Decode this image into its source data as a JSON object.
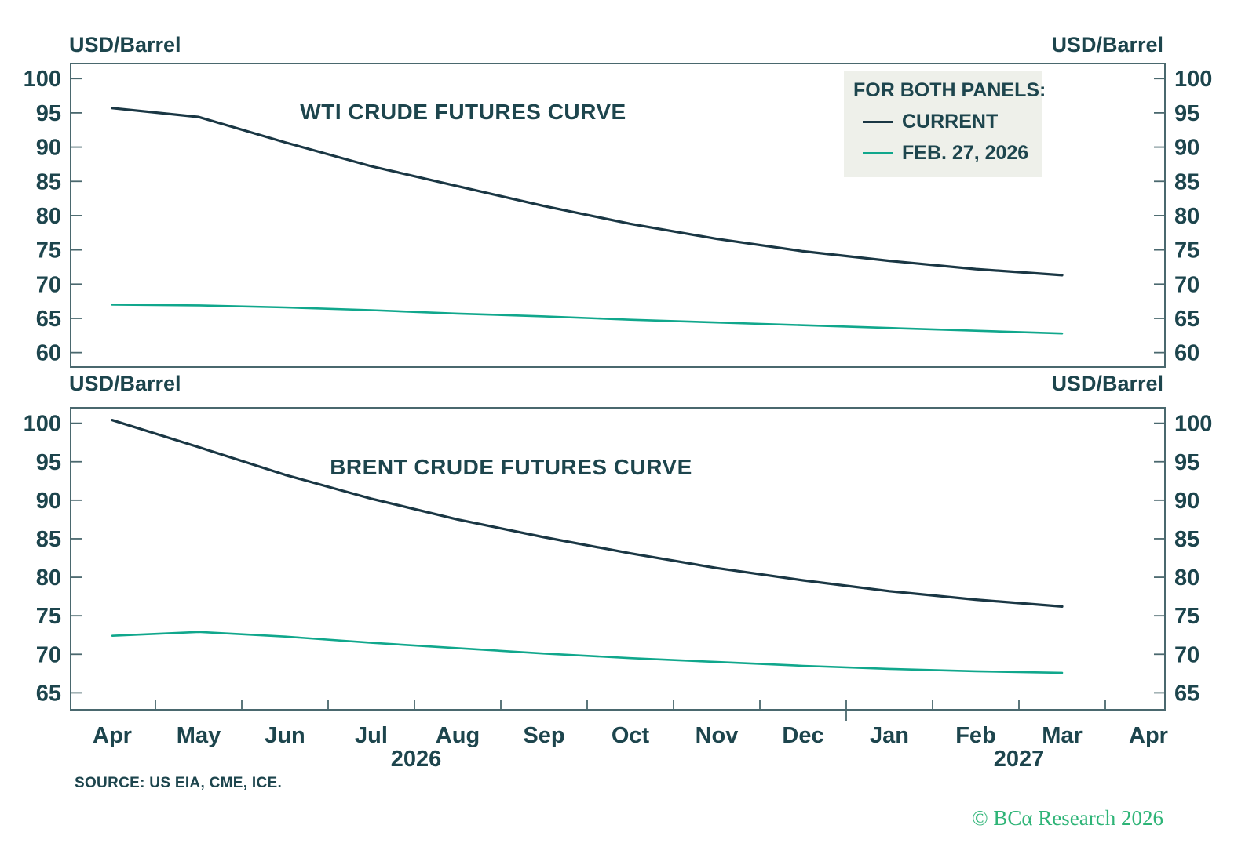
{
  "panels": [
    {
      "title": "WTI CRUDE FUTURES CURVE",
      "unit_left": "USD/Barrel",
      "unit_right": "USD/Barrel"
    },
    {
      "title": "BRENT CRUDE FUTURES CURVE",
      "unit_left": "USD/Barrel",
      "unit_right": "USD/Barrel"
    }
  ],
  "legend": {
    "heading": "FOR BOTH PANELS:",
    "items": [
      {
        "label": "CURRENT",
        "color": "#1a3744"
      },
      {
        "label": "FEB. 27, 2026",
        "color": "#10a78c"
      }
    ]
  },
  "x_axis": {
    "month_labels": [
      "Apr",
      "May",
      "Jun",
      "Jul",
      "Aug",
      "Sep",
      "Oct",
      "Nov",
      "Dec",
      "Jan",
      "Feb",
      "Mar",
      "Apr"
    ],
    "year_labels": [
      "2026",
      "2027"
    ]
  },
  "footer": {
    "source": "SOURCE: US EIA, CME, ICE.",
    "copyright": "© BCα Research 2026"
  },
  "colors": {
    "text": "#1d454d",
    "axis": "#4a686e",
    "current_line": "#1a3744",
    "feb_line": "#10a78c",
    "legend_bg": "#eef0ea",
    "copyright_green": "#2eb477"
  },
  "chart_data": [
    {
      "type": "line",
      "title": "WTI CRUDE FUTURES CURVE",
      "ylabel": "USD/Barrel",
      "grid": false,
      "legend_position": "top-right shared box: FOR BOTH PANELS",
      "categories": [
        "Apr 2026",
        "May 2026",
        "Jun 2026",
        "Jul 2026",
        "Aug 2026",
        "Sep 2026",
        "Oct 2026",
        "Nov 2026",
        "Dec 2026",
        "Jan 2027",
        "Feb 2027",
        "Mar 2027"
      ],
      "yticks": [
        60,
        65,
        70,
        75,
        80,
        85,
        90,
        95,
        100
      ],
      "ylim": [
        57.9,
        102.2
      ],
      "series": [
        {
          "name": "CURRENT",
          "values": [
            95.7,
            94.4,
            90.7,
            87.2,
            84.3,
            81.4,
            78.8,
            76.6,
            74.8,
            73.4,
            72.2,
            71.3
          ]
        },
        {
          "name": "FEB. 27, 2026",
          "values": [
            67.0,
            66.9,
            66.6,
            66.2,
            65.7,
            65.3,
            64.8,
            64.4,
            64.0,
            63.6,
            63.2,
            62.8
          ]
        }
      ]
    },
    {
      "type": "line",
      "title": "BRENT CRUDE FUTURES CURVE",
      "ylabel": "USD/Barrel",
      "grid": false,
      "legend_position": "top-right shared box: FOR BOTH PANELS",
      "categories": [
        "Apr 2026",
        "May 2026",
        "Jun 2026",
        "Jul 2026",
        "Aug 2026",
        "Sep 2026",
        "Oct 2026",
        "Nov 2026",
        "Dec 2026",
        "Jan 2027",
        "Feb 2027",
        "Mar 2027"
      ],
      "yticks": [
        65,
        70,
        75,
        80,
        85,
        90,
        95,
        100
      ],
      "ylim": [
        62.8,
        102.0
      ],
      "series": [
        {
          "name": "CURRENT",
          "values": [
            100.4,
            96.9,
            93.3,
            90.2,
            87.5,
            85.2,
            83.1,
            81.2,
            79.6,
            78.2,
            77.1,
            76.2
          ]
        },
        {
          "name": "FEB. 27, 2026",
          "values": [
            72.4,
            72.9,
            72.3,
            71.5,
            70.8,
            70.1,
            69.5,
            69.0,
            68.5,
            68.1,
            67.8,
            67.6
          ]
        }
      ]
    }
  ]
}
